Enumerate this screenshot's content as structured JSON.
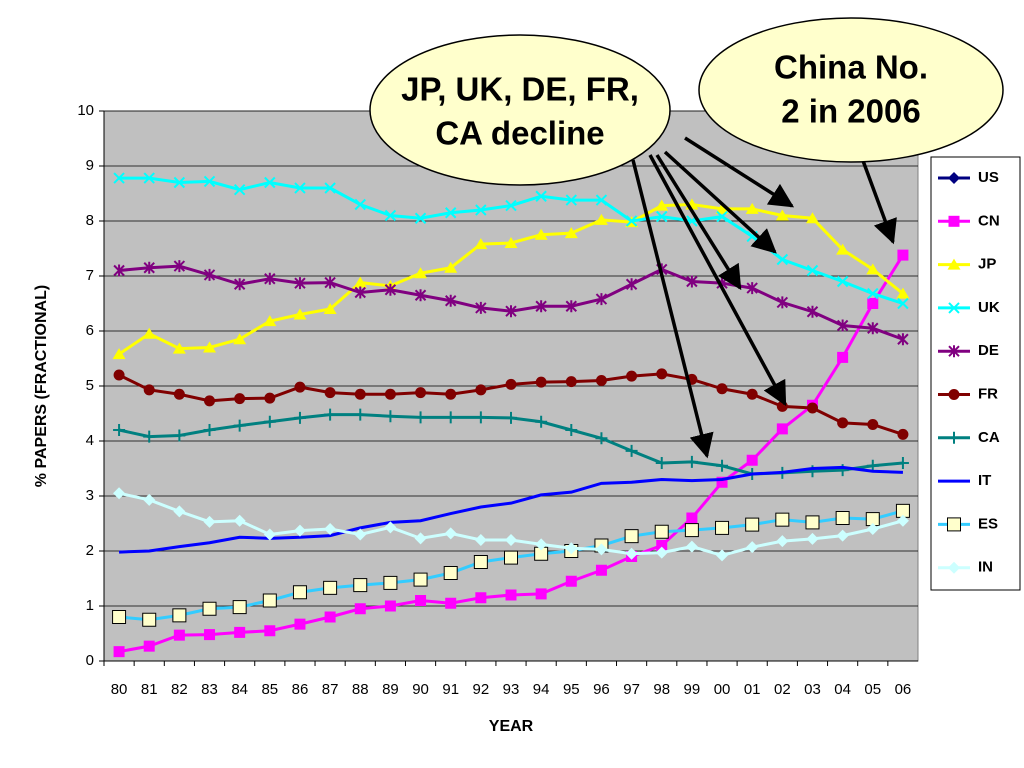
{
  "chart_data": {
    "type": "line",
    "xlabel": "YEAR",
    "ylabel": "% PAPERS (FRACTIONAL)",
    "categories": [
      "80",
      "81",
      "82",
      "83",
      "84",
      "85",
      "86",
      "87",
      "88",
      "89",
      "90",
      "91",
      "92",
      "93",
      "94",
      "95",
      "96",
      "97",
      "98",
      "99",
      "00",
      "01",
      "02",
      "03",
      "04",
      "05",
      "06"
    ],
    "ylim": [
      0,
      10
    ],
    "yticks": [
      0,
      1,
      2,
      3,
      4,
      5,
      6,
      7,
      8,
      9,
      10
    ],
    "grid": true,
    "legend": "right",
    "series": [
      {
        "name": "US",
        "color": "#000080",
        "marker": "diamond",
        "values": [
          null,
          null,
          null,
          null,
          null,
          null,
          null,
          null,
          null,
          null,
          null,
          null,
          null,
          null,
          null,
          null,
          null,
          null,
          null,
          null,
          null,
          null,
          null,
          null,
          null,
          null,
          null
        ]
      },
      {
        "name": "CN",
        "color": "#ff00ff",
        "marker": "square",
        "values": [
          0.17,
          0.27,
          0.47,
          0.48,
          0.52,
          0.55,
          0.67,
          0.8,
          0.95,
          1.0,
          1.1,
          1.05,
          1.15,
          1.2,
          1.22,
          1.45,
          1.65,
          1.9,
          2.1,
          2.6,
          3.25,
          3.65,
          4.22,
          4.65,
          5.52,
          6.5,
          7.38
        ]
      },
      {
        "name": "JP",
        "color": "#ffff00",
        "marker": "triangle",
        "values": [
          5.58,
          5.95,
          5.68,
          5.7,
          5.85,
          6.18,
          6.3,
          6.4,
          6.88,
          6.82,
          7.05,
          7.15,
          7.58,
          7.6,
          7.75,
          7.78,
          8.02,
          7.98,
          8.28,
          8.3,
          8.22,
          8.22,
          8.1,
          8.05,
          7.48,
          7.12,
          6.68
        ]
      },
      {
        "name": "UK",
        "color": "#00ffff",
        "marker": "x",
        "values": [
          8.78,
          8.78,
          8.7,
          8.72,
          8.57,
          8.7,
          8.6,
          8.6,
          8.3,
          8.1,
          8.05,
          8.15,
          8.2,
          8.28,
          8.45,
          8.38,
          8.38,
          8.0,
          8.08,
          8.0,
          8.08,
          7.72,
          7.3,
          7.1,
          6.9,
          6.68,
          6.5
        ]
      },
      {
        "name": "DE",
        "color": "#800080",
        "marker": "asterisk",
        "values": [
          7.1,
          7.15,
          7.18,
          7.02,
          6.85,
          6.95,
          6.87,
          6.88,
          6.7,
          6.75,
          6.65,
          6.55,
          6.42,
          6.36,
          6.45,
          6.45,
          6.58,
          6.85,
          7.12,
          6.9,
          6.87,
          6.78,
          6.52,
          6.35,
          6.1,
          6.05,
          5.85
        ]
      },
      {
        "name": "FR",
        "color": "#800000",
        "marker": "circle",
        "values": [
          5.2,
          4.93,
          4.85,
          4.73,
          4.77,
          4.78,
          4.98,
          4.88,
          4.85,
          4.85,
          4.88,
          4.85,
          4.93,
          5.03,
          5.07,
          5.08,
          5.1,
          5.18,
          5.22,
          5.12,
          4.95,
          4.85,
          4.63,
          4.6,
          4.33,
          4.3,
          4.12
        ]
      },
      {
        "name": "CA",
        "color": "#008080",
        "marker": "plus",
        "values": [
          4.2,
          4.08,
          4.1,
          4.2,
          4.28,
          4.35,
          4.42,
          4.48,
          4.48,
          4.45,
          4.43,
          4.43,
          4.43,
          4.42,
          4.35,
          4.2,
          4.05,
          3.82,
          3.6,
          3.62,
          3.55,
          3.4,
          3.42,
          3.45,
          3.47,
          3.55,
          3.6
        ]
      },
      {
        "name": "IT",
        "color": "#0000ff",
        "marker": "none",
        "values": [
          1.98,
          2.0,
          2.08,
          2.15,
          2.25,
          2.23,
          2.25,
          2.28,
          2.42,
          2.52,
          2.55,
          2.68,
          2.8,
          2.87,
          3.02,
          3.07,
          3.23,
          3.25,
          3.3,
          3.28,
          3.3,
          3.4,
          3.43,
          3.5,
          3.52,
          3.45,
          3.43
        ]
      },
      {
        "name": "ES",
        "color": "#33ccff",
        "marker": "open-square",
        "values": [
          0.8,
          0.75,
          0.83,
          0.95,
          0.98,
          1.1,
          1.25,
          1.33,
          1.38,
          1.42,
          1.48,
          1.6,
          1.8,
          1.88,
          1.95,
          2.0,
          2.1,
          2.27,
          2.35,
          2.38,
          2.42,
          2.48,
          2.57,
          2.52,
          2.6,
          2.58,
          2.73
        ]
      },
      {
        "name": "IN",
        "color": "#ccffff",
        "marker": "diamond",
        "values": [
          3.05,
          2.93,
          2.72,
          2.53,
          2.55,
          2.3,
          2.37,
          2.4,
          2.3,
          2.43,
          2.23,
          2.32,
          2.2,
          2.2,
          2.12,
          2.05,
          2.03,
          1.95,
          1.97,
          2.08,
          1.92,
          2.07,
          2.18,
          2.22,
          2.28,
          2.4,
          2.55
        ]
      }
    ],
    "annotations": [
      {
        "lines": [
          "JP, UK, DE, FR,",
          "CA decline"
        ]
      },
      {
        "lines": [
          "China No.",
          "2 in 2006"
        ]
      }
    ]
  }
}
